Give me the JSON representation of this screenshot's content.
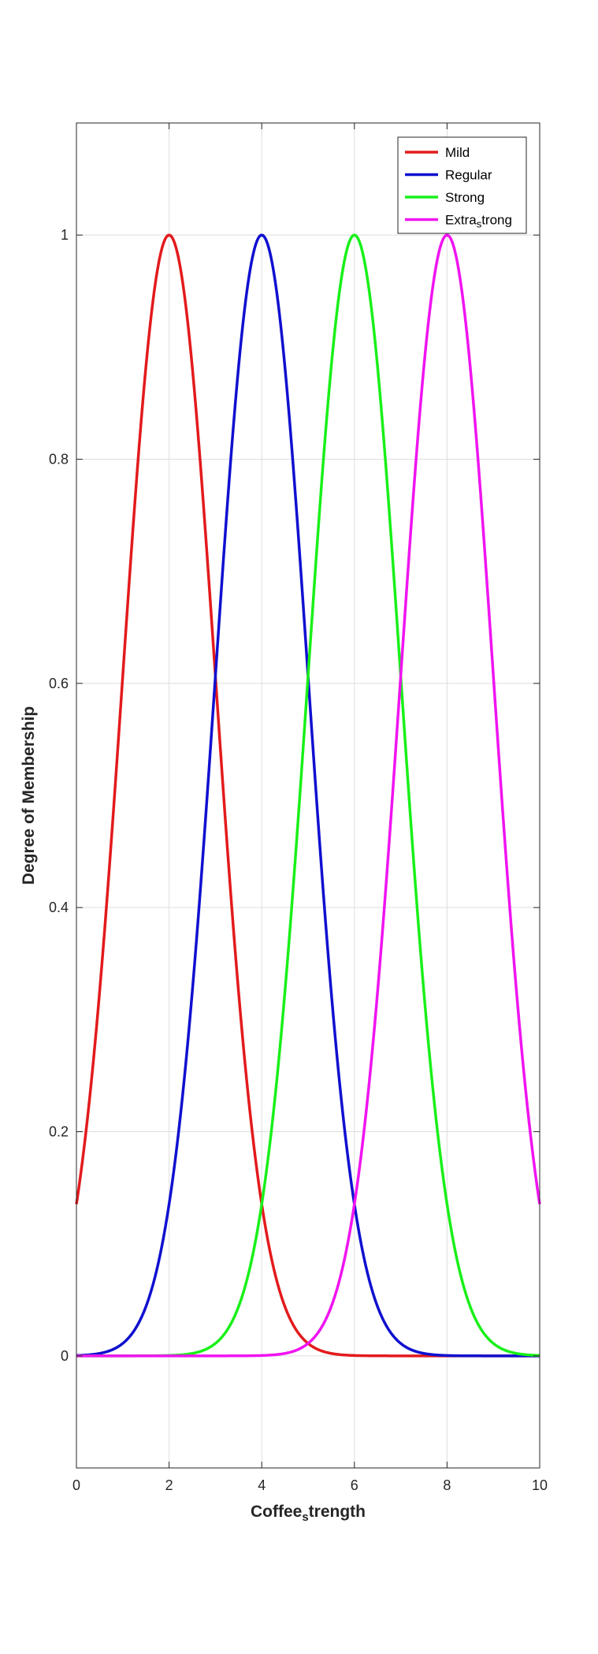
{
  "chart_data": {
    "type": "line",
    "xlabel_main": "Coffee",
    "xlabel_sub": "s",
    "xlabel_tail": "trength",
    "ylabel": "Degree of Membership",
    "xlim": [
      0,
      10
    ],
    "ylim": [
      -0.1,
      1.1
    ],
    "xticks": [
      0,
      2,
      4,
      6,
      8,
      10
    ],
    "yticks": [
      0,
      0.2,
      0.4,
      0.6,
      0.8,
      1
    ],
    "xtick_labels": [
      "0",
      "2",
      "4",
      "6",
      "8",
      "10"
    ],
    "ytick_labels": [
      "0",
      "0.2",
      "0.4",
      "0.6",
      "0.8",
      "1"
    ],
    "grid": true,
    "legend_position": "top-right",
    "series": [
      {
        "name": "Mild",
        "name_main": "Mild",
        "name_sub": "",
        "name_tail": "",
        "function": "gaussian",
        "center": 2,
        "sigma": 1,
        "color": "#e31a1c"
      },
      {
        "name": "Regular",
        "name_main": "Regular",
        "name_sub": "",
        "name_tail": "",
        "function": "gaussian",
        "center": 4,
        "sigma": 1,
        "color": "#1010d0"
      },
      {
        "name": "Strong",
        "name_main": "Strong",
        "name_sub": "",
        "name_tail": "",
        "function": "gaussian",
        "center": 6,
        "sigma": 1,
        "color": "#19f019"
      },
      {
        "name": "Extrastrong",
        "name_main": "Extra",
        "name_sub": "s",
        "name_tail": "trong",
        "function": "gaussian",
        "center": 8,
        "sigma": 1,
        "color": "#f014f0"
      }
    ]
  }
}
